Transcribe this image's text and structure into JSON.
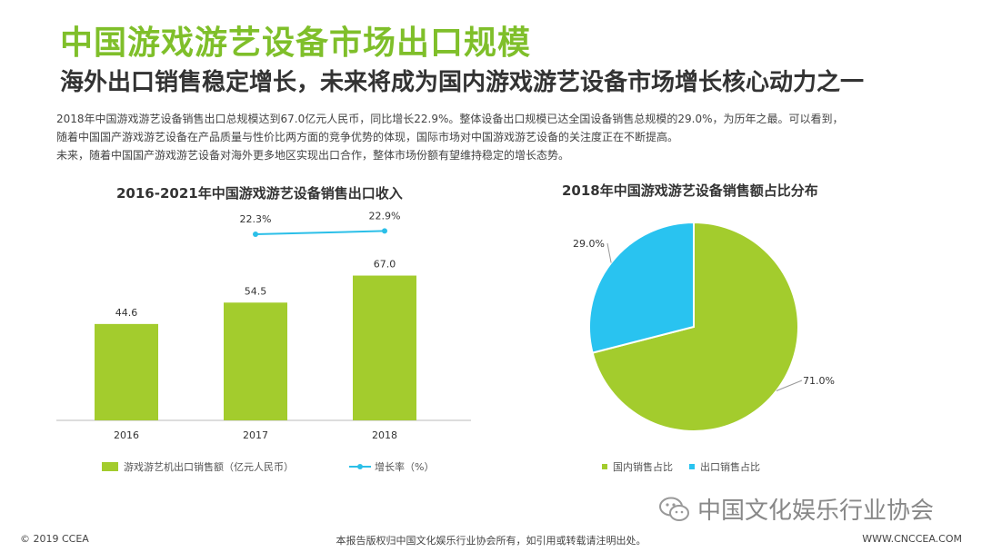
{
  "header": {
    "title": "中国游戏游艺设备市场出口规模",
    "subtitle": "海外出口销售稳定增长，未来将成为国内游戏游艺设备市场增长核心动力之一"
  },
  "body_text": {
    "line1": "2018年中国游戏游艺设备销售出口总规模达到67.0亿元人民币，同比增长22.9%。整体设备出口规模已达全国设备销售总规模的29.0%，为历年之最。可以看到，",
    "line2": "随着中国国产游戏游艺设备在产品质量与性价比两方面的竞争优势的体现，国际市场对中国游戏游艺设备的关注度正在不断提高。",
    "line3": "未来，随着中国国产游戏游艺设备对海外更多地区实现出口合作，整体市场份额有望维持稳定的增长态势。"
  },
  "colors": {
    "bar_green": "#a3cc2d",
    "line_blue": "#2bbfe8",
    "pie_green": "#a3cc2d",
    "pie_blue": "#29c3f0",
    "title_green": "#7fbf2a"
  },
  "chart_data": [
    {
      "type": "bar",
      "title": "2016-2021年中国游戏游艺设备销售出口收入",
      "categories": [
        "2016",
        "2017",
        "2018"
      ],
      "series": [
        {
          "name": "游戏游艺机出口销售额（亿元人民币）",
          "type": "bar",
          "values": [
            44.6,
            54.5,
            67.0
          ],
          "labels": [
            "44.6",
            "54.5",
            "67.0"
          ]
        },
        {
          "name": "增长率（%）",
          "type": "line",
          "values": [
            null,
            22.3,
            22.9
          ],
          "labels": [
            "",
            "22.3%",
            "22.9%"
          ]
        }
      ],
      "ylim": [
        0,
        100
      ]
    },
    {
      "type": "pie",
      "title": "2018年中国游戏游艺设备销售额占比分布",
      "slices": [
        {
          "name": "国内销售占比",
          "value": 71.0,
          "label": "71.0%"
        },
        {
          "name": "出口销售占比",
          "value": 29.0,
          "label": "29.0%"
        }
      ]
    }
  ],
  "footer": {
    "copyright": "© 2019 CCEA",
    "notice": "本报告版权归中国文化娱乐行业协会所有，如引用或转载请注明出处。",
    "website": "WWW.CNCCEA.COM",
    "watermark": "中国文化娱乐行业协会",
    "watermark_icon": "wechat-icon"
  }
}
